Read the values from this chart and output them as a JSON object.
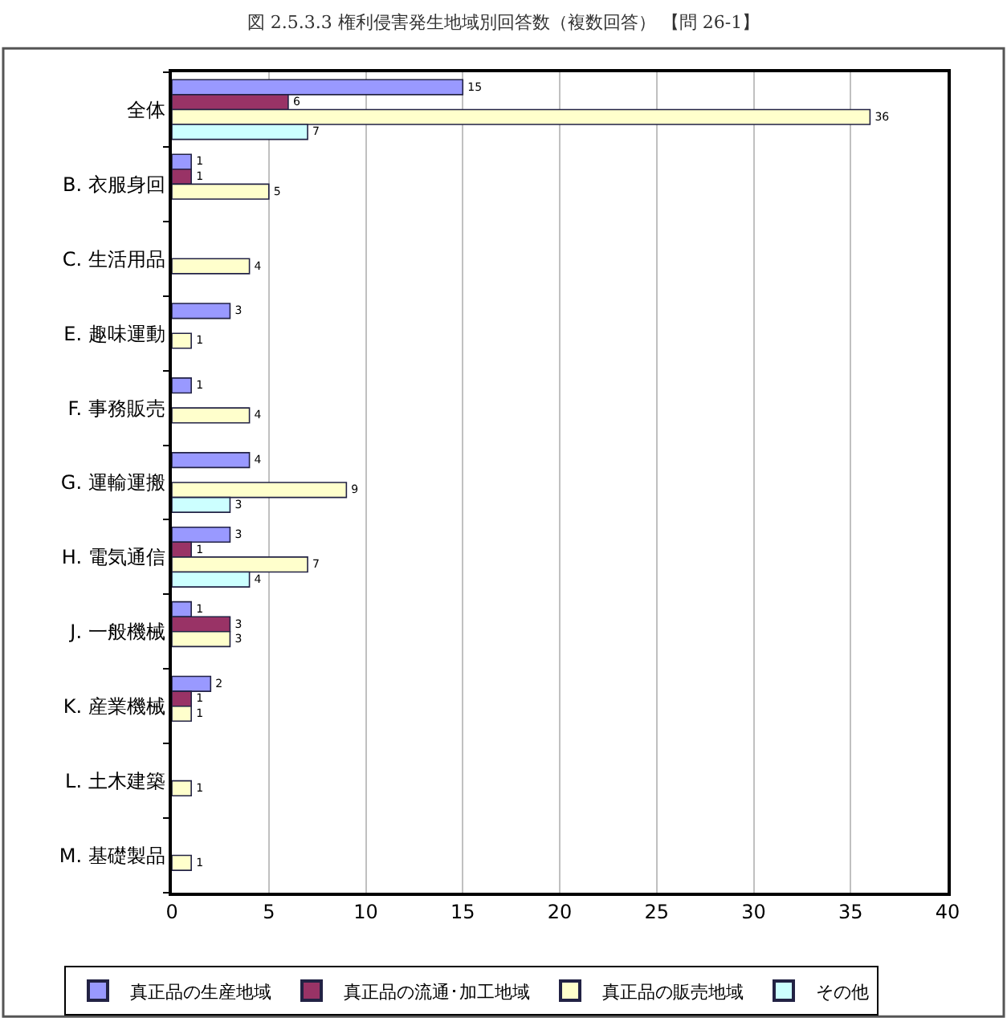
{
  "chart_data": {
    "type": "bar",
    "orientation": "horizontal",
    "title": "図 2.5.3.3 権利侵害発生地域別回答数（複数回答） 【問 26-1】",
    "categories": [
      "全体",
      "B. 衣服身回",
      "C. 生活用品",
      "E. 趣味運動",
      "F. 事務販売",
      "G. 運輸運搬",
      "H. 電気通信",
      "J. 一般機械",
      "K. 産業機械",
      "L. 土木建築",
      "M. 基礎製品"
    ],
    "series": [
      {
        "name": "真正品の生産地域",
        "color": "#9999ff",
        "values": [
          15,
          1,
          null,
          3,
          1,
          4,
          3,
          1,
          2,
          null,
          null
        ]
      },
      {
        "name": "真正品の流通･加工地域",
        "color": "#993366",
        "values": [
          6,
          1,
          null,
          null,
          null,
          null,
          1,
          3,
          1,
          null,
          null
        ]
      },
      {
        "name": "真正品の販売地域",
        "color": "#ffffcc",
        "values": [
          36,
          5,
          4,
          1,
          4,
          9,
          7,
          3,
          1,
          1,
          1
        ]
      },
      {
        "name": "その他",
        "color": "#ccffff",
        "values": [
          7,
          null,
          null,
          null,
          null,
          3,
          4,
          null,
          null,
          null,
          null
        ]
      }
    ],
    "xlim": [
      0,
      40
    ],
    "xticks": [
      0,
      5,
      10,
      15,
      20,
      25,
      30,
      35,
      40
    ],
    "grid": "x",
    "legend": "bottom",
    "data_labels": true
  }
}
